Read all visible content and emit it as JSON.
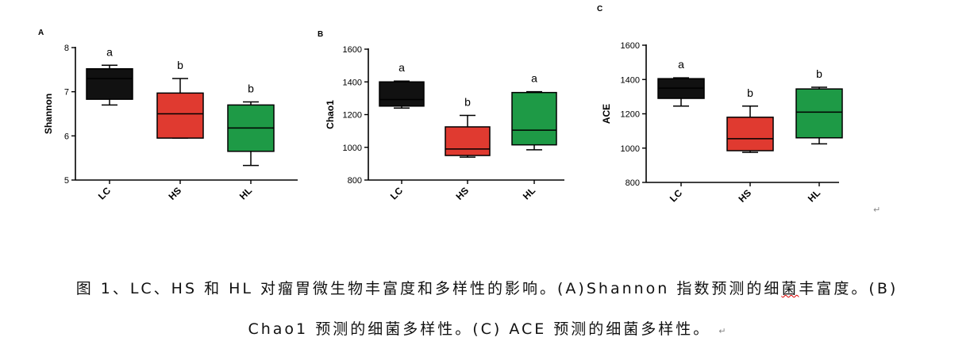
{
  "chart_data": [
    {
      "type": "box",
      "panel": "A",
      "ylabel": "Shannon",
      "ylim": [
        5,
        8
      ],
      "yticks": [
        "5",
        "6",
        "7",
        "8"
      ],
      "categories": [
        "LC",
        "HS",
        "HL"
      ],
      "colors": [
        "#111111",
        "#e03a30",
        "#1e9a46"
      ],
      "boxes": [
        {
          "min": 6.7,
          "q1": 6.83,
          "median": 7.3,
          "q3": 7.52,
          "max": 7.6,
          "letter": "a"
        },
        {
          "min": 5.95,
          "q1": 5.95,
          "median": 6.5,
          "q3": 6.97,
          "max": 7.3,
          "letter": "b"
        },
        {
          "min": 5.33,
          "q1": 5.65,
          "median": 6.18,
          "q3": 6.7,
          "max": 6.77,
          "letter": "b"
        }
      ]
    },
    {
      "type": "box",
      "panel": "B",
      "ylabel": "Chao1",
      "ylim": [
        800,
        1600
      ],
      "yticks": [
        "800",
        "1000",
        "1200",
        "1400",
        "1600"
      ],
      "categories": [
        "LC",
        "HS",
        "HL"
      ],
      "colors": [
        "#111111",
        "#e03a30",
        "#1e9a46"
      ],
      "boxes": [
        {
          "min": 1240,
          "q1": 1252,
          "median": 1292,
          "q3": 1400,
          "max": 1405,
          "letter": "a"
        },
        {
          "min": 940,
          "q1": 950,
          "median": 990,
          "q3": 1125,
          "max": 1195,
          "letter": "b"
        },
        {
          "min": 985,
          "q1": 1015,
          "median": 1105,
          "q3": 1335,
          "max": 1340,
          "letter": "a"
        }
      ]
    },
    {
      "type": "box",
      "panel": "C",
      "ylabel": "ACE",
      "ylim": [
        800,
        1600
      ],
      "yticks": [
        "800",
        "1000",
        "1200",
        "1400",
        "1600"
      ],
      "categories": [
        "LC",
        "HS",
        "HL"
      ],
      "colors": [
        "#111111",
        "#e03a30",
        "#1e9a46"
      ],
      "boxes": [
        {
          "min": 1245,
          "q1": 1290,
          "median": 1350,
          "q3": 1405,
          "max": 1410,
          "letter": "a"
        },
        {
          "min": 975,
          "q1": 985,
          "median": 1055,
          "q3": 1180,
          "max": 1245,
          "letter": "b"
        },
        {
          "min": 1025,
          "q1": 1060,
          "median": 1210,
          "q3": 1345,
          "max": 1355,
          "letter": "b"
        }
      ]
    }
  ],
  "caption": {
    "line1_main": "图 1、LC、HS 和 HL 对瘤胃微生物丰富度和多样性的影响。(A)Shannon 指数预测的细",
    "line1_squiggle": "菌",
    "line1_end": "丰富度。(B)",
    "line2": "Chao1 预测的细菌多样性。(C) ACE 预测的细菌多样性。",
    "para_mark": "↵"
  }
}
